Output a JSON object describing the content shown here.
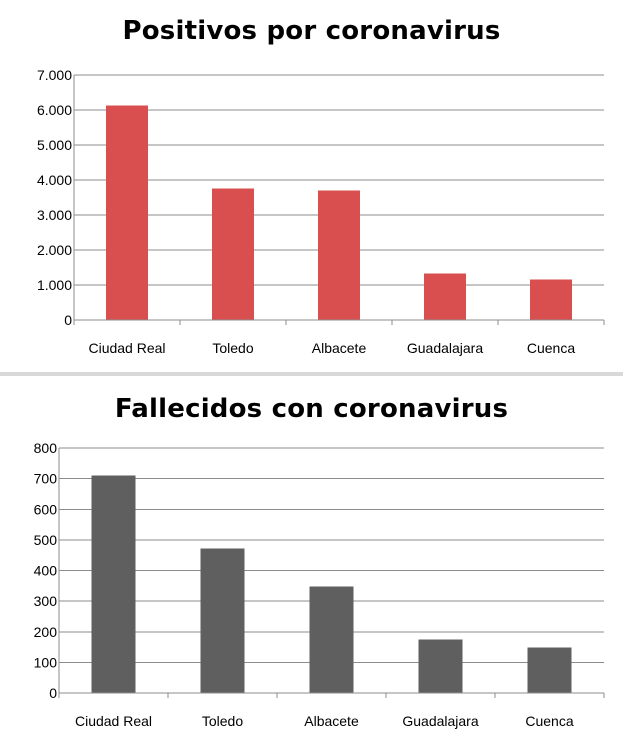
{
  "chart_data": [
    {
      "type": "bar",
      "title": "Positivos por coronavirus",
      "categories": [
        "Ciudad Real",
        "Toledo",
        "Albacete",
        "Guadalajara",
        "Cuenca"
      ],
      "values": [
        6130,
        3760,
        3700,
        1330,
        1160
      ],
      "ylim": [
        0,
        7000
      ],
      "yticks": [
        0,
        1000,
        2000,
        3000,
        4000,
        5000,
        6000,
        7000
      ],
      "ytick_labels": [
        "0",
        "1.000",
        "2.000",
        "3.000",
        "4.000",
        "5.000",
        "6.000",
        "7.000"
      ],
      "xlabel": "",
      "ylabel": "",
      "color": "#d94f4f",
      "grid": true,
      "legend": "none"
    },
    {
      "type": "bar",
      "title": "Fallecidos con coronavirus",
      "categories": [
        "Ciudad Real",
        "Toledo",
        "Albacete",
        "Guadalajara",
        "Cuenca"
      ],
      "values": [
        710,
        472,
        347,
        175,
        148
      ],
      "ylim": [
        0,
        800
      ],
      "yticks": [
        0,
        100,
        200,
        300,
        400,
        500,
        600,
        700,
        800
      ],
      "ytick_labels": [
        "0",
        "100",
        "200",
        "300",
        "400",
        "500",
        "600",
        "700",
        "800"
      ],
      "xlabel": "",
      "ylabel": "",
      "color": "#5f5f5f",
      "grid": true,
      "legend": "none"
    }
  ]
}
